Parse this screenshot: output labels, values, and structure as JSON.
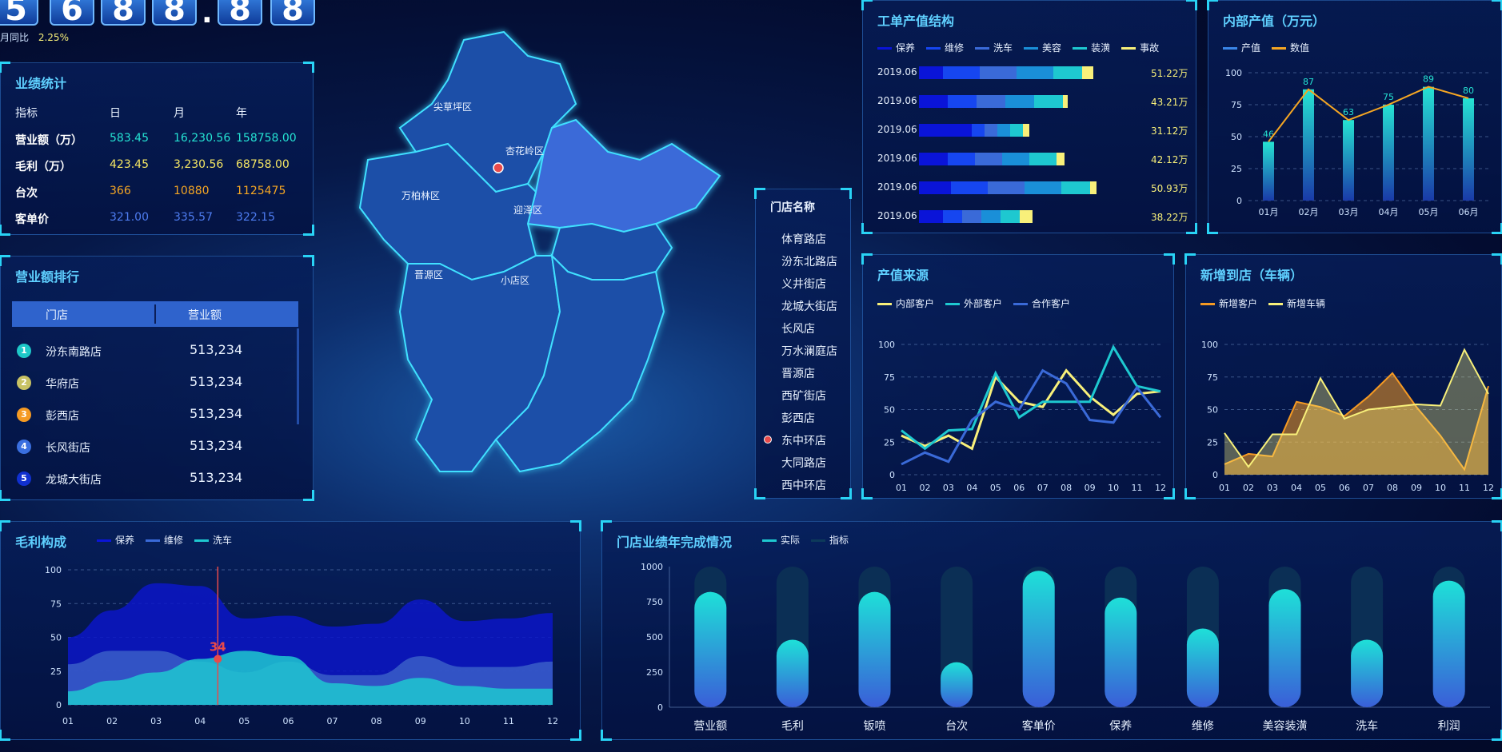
{
  "counter": {
    "digits": [
      "5",
      "6",
      "8",
      "8",
      ".",
      "8",
      "8"
    ],
    "mom_label": "月同比",
    "mom_value": "2.25%"
  },
  "map": {
    "regions": [
      "尖草坪区",
      "杏花岭区",
      "万柏林区",
      "迎泽区",
      "晋源区",
      "小店区"
    ]
  },
  "perf_stats": {
    "title": "业绩统计",
    "header": [
      "指标",
      "日",
      "月",
      "年"
    ],
    "rows": [
      {
        "name": "营业额（万）",
        "day": "583.45",
        "month": "16,230.56",
        "year": "158758.00",
        "color": "#25e3d3"
      },
      {
        "name": "毛利（万）",
        "day": "423.45",
        "month": "3,230.56",
        "year": "68758.00",
        "color": "#f5e663"
      },
      {
        "name": "台次",
        "day": "366",
        "month": "10880",
        "year": "1125475",
        "color": "#f5a623"
      },
      {
        "name": "客单价",
        "day": "321.00",
        "month": "335.57",
        "year": "322.15",
        "color": "#4e7cf0"
      }
    ]
  },
  "revenue_rank": {
    "title": "营业额排行",
    "header": [
      "门店",
      "营业额"
    ],
    "rows": [
      {
        "rank": "1",
        "store": "汾东南路店",
        "value": "513,234",
        "color": "#1ec8c8"
      },
      {
        "rank": "2",
        "store": "华府店",
        "value": "513,234",
        "color": "#c8c264"
      },
      {
        "rank": "3",
        "store": "彭西店",
        "value": "513,234",
        "color": "#f59a23"
      },
      {
        "rank": "4",
        "store": "长风街店",
        "value": "513,234",
        "color": "#3a6fe0"
      },
      {
        "rank": "5",
        "store": "龙城大街店",
        "value": "513,234",
        "color": "#1030d0"
      }
    ]
  },
  "stores": {
    "title": "门店名称",
    "items": [
      "体育路店",
      "汾东北路店",
      "义井街店",
      "龙城大街店",
      "长风店",
      "万水澜庭店",
      "晋源店",
      "西矿街店",
      "彭西店",
      "东中环店",
      "大同路店",
      "西中环店"
    ],
    "active_index": 9
  },
  "work_order": {
    "title": "工单产值结构",
    "legend": [
      {
        "name": "保养",
        "color": "#0a14d8"
      },
      {
        "name": "维修",
        "color": "#1646f0"
      },
      {
        "name": "洗车",
        "color": "#3a6ad8"
      },
      {
        "name": "美容",
        "color": "#1a8fd8"
      },
      {
        "name": "装潢",
        "color": "#1ec8d0"
      },
      {
        "name": "事故",
        "color": "#f8f07a"
      }
    ],
    "rows": [
      {
        "label": "2019.06",
        "total": "51.22万",
        "segments": [
          15,
          23,
          23,
          23,
          18,
          7
        ]
      },
      {
        "label": "2019.06",
        "total": "43.21万",
        "segments": [
          18,
          18,
          18,
          18,
          18,
          3
        ]
      },
      {
        "label": "2019.06",
        "total": "31.12万",
        "segments": [
          33,
          8,
          8,
          8,
          8,
          4
        ]
      },
      {
        "label": "2019.06",
        "total": "42.12万",
        "segments": [
          18,
          17,
          17,
          17,
          17,
          5
        ]
      },
      {
        "label": "2019.06",
        "total": "50.93万",
        "segments": [
          20,
          23,
          23,
          23,
          18,
          4
        ]
      },
      {
        "label": "2019.06",
        "total": "38.22万",
        "segments": [
          15,
          12,
          12,
          12,
          12,
          8
        ]
      }
    ]
  },
  "internal_value": {
    "title": "内部产值（万元）",
    "legend": [
      {
        "name": "产值",
        "color": "#3a86e8"
      },
      {
        "name": "数值",
        "color": "#f5a623"
      }
    ],
    "chart_data": {
      "type": "bar",
      "categories": [
        "01月",
        "02月",
        "03月",
        "04月",
        "05月",
        "06月"
      ],
      "series": [
        {
          "name": "产值",
          "values": [
            46,
            87,
            63,
            75,
            89,
            80
          ]
        },
        {
          "name": "数值",
          "values": [
            46,
            87,
            63,
            75,
            89,
            80
          ]
        }
      ],
      "ylim": [
        0,
        100
      ],
      "yticks": [
        0,
        25,
        50,
        75,
        100
      ]
    }
  },
  "value_source": {
    "title": "产值来源",
    "legend": [
      {
        "name": "内部客户",
        "color": "#f8f07a"
      },
      {
        "name": "外部客户",
        "color": "#1ec8d0"
      },
      {
        "name": "合作客户",
        "color": "#3a6ad8"
      }
    ],
    "chart_data": {
      "type": "line",
      "x": [
        "01",
        "02",
        "03",
        "04",
        "05",
        "06",
        "07",
        "08",
        "09",
        "10",
        "11",
        "12"
      ],
      "series": [
        {
          "name": "内部客户",
          "values": [
            30,
            22,
            30,
            20,
            75,
            56,
            52,
            80,
            60,
            46,
            62,
            64
          ]
        },
        {
          "name": "外部客户",
          "values": [
            34,
            20,
            34,
            35,
            78,
            44,
            56,
            56,
            56,
            98,
            68,
            64
          ]
        },
        {
          "name": "合作客户",
          "values": [
            8,
            17,
            10,
            42,
            56,
            50,
            80,
            70,
            42,
            40,
            67,
            44
          ]
        }
      ],
      "ylim": [
        0,
        100
      ],
      "yticks": [
        0,
        25,
        50,
        75,
        100
      ]
    }
  },
  "new_arrivals": {
    "title": "新增到店（车辆）",
    "legend": [
      {
        "name": "新增客户",
        "color": "#f59a23"
      },
      {
        "name": "新增车辆",
        "color": "#f8f07a"
      }
    ],
    "chart_data": {
      "type": "area",
      "x": [
        "01",
        "02",
        "03",
        "04",
        "05",
        "06",
        "07",
        "08",
        "09",
        "10",
        "11",
        "12"
      ],
      "series": [
        {
          "name": "新增客户",
          "values": [
            8,
            16,
            14,
            56,
            52,
            45,
            60,
            78,
            52,
            30,
            4,
            68
          ]
        },
        {
          "name": "新增车辆",
          "values": [
            32,
            6,
            31,
            31,
            74,
            43,
            50,
            52,
            54,
            53,
            96,
            62
          ]
        }
      ],
      "ylim": [
        0,
        100
      ],
      "yticks": [
        0,
        25,
        50,
        75,
        100
      ]
    }
  },
  "gross_profit": {
    "title": "毛利构成",
    "legend": [
      {
        "name": "保养",
        "color": "#0a14d8"
      },
      {
        "name": "维修",
        "color": "#3a6ad8"
      },
      {
        "name": "洗车",
        "color": "#1ec8d0"
      }
    ],
    "tooltip_value": "34",
    "chart_data": {
      "type": "area",
      "x": [
        "01",
        "02",
        "03",
        "04",
        "05",
        "06",
        "07",
        "08",
        "09",
        "10",
        "11",
        "12"
      ],
      "series": [
        {
          "name": "保养",
          "values": [
            50,
            70,
            90,
            88,
            64,
            66,
            58,
            60,
            78,
            62,
            64,
            68
          ]
        },
        {
          "name": "维修",
          "values": [
            30,
            40,
            40,
            32,
            24,
            32,
            22,
            22,
            36,
            28,
            28,
            32
          ]
        },
        {
          "name": "洗车",
          "values": [
            10,
            18,
            24,
            34,
            40,
            36,
            16,
            14,
            20,
            14,
            12,
            12
          ]
        }
      ],
      "ylim": [
        0,
        100
      ],
      "yticks": [
        0,
        25,
        50,
        75,
        100
      ]
    }
  },
  "annual_completion": {
    "title": "门店业绩年完成情况",
    "legend": [
      {
        "name": "实际",
        "color": "#1ec8d0"
      },
      {
        "name": "指标",
        "color": "#0d3a5a"
      }
    ],
    "chart_data": {
      "type": "bar",
      "categories": [
        "营业额",
        "毛利",
        "钣喷",
        "台次",
        "客单价",
        "保养",
        "维修",
        "美容装潢",
        "洗车",
        "利润"
      ],
      "series": [
        {
          "name": "实际",
          "values": [
            820,
            480,
            820,
            320,
            970,
            780,
            560,
            840,
            480,
            900
          ]
        },
        {
          "name": "指标",
          "values": [
            1000,
            1000,
            1000,
            1000,
            1000,
            1000,
            1000,
            1000,
            1000,
            1000
          ]
        }
      ],
      "ylim": [
        0,
        1000
      ],
      "yticks": [
        0,
        250,
        500,
        750,
        1000
      ]
    }
  }
}
